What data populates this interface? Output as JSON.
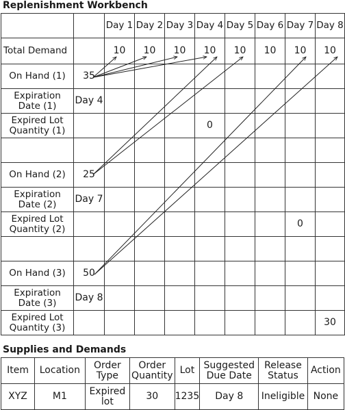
{
  "workbench": {
    "title": "Replenishment Workbench",
    "days": [
      "Day 1",
      "Day 2",
      "Day 3",
      "Day 4",
      "Day 5",
      "Day 6",
      "Day 7",
      "Day 8"
    ],
    "rows": [
      {
        "label": "Total Demand",
        "col0": "",
        "days": [
          "10",
          "10",
          "10",
          "10",
          "10",
          "10",
          "10",
          "10"
        ]
      },
      {
        "label": "On Hand (1)",
        "col0": "35",
        "days": [
          "",
          "",
          "",
          "",
          "",
          "",
          "",
          ""
        ]
      },
      {
        "label": "Expiration Date (1)",
        "col0": "Day 4",
        "days": [
          "",
          "",
          "",
          "",
          "",
          "",
          "",
          ""
        ]
      },
      {
        "label": "Expired Lot Quantity (1)",
        "col0": "",
        "days": [
          "",
          "",
          "",
          "0",
          "",
          "",
          "",
          ""
        ]
      },
      {
        "label": "",
        "col0": "",
        "days": [
          "",
          "",
          "",
          "",
          "",
          "",
          "",
          ""
        ]
      },
      {
        "label": "On Hand (2)",
        "col0": "25",
        "days": [
          "",
          "",
          "",
          "",
          "",
          "",
          "",
          ""
        ]
      },
      {
        "label": "Expiration Date (2)",
        "col0": "Day 7",
        "days": [
          "",
          "",
          "",
          "",
          "",
          "",
          "",
          ""
        ]
      },
      {
        "label": "Expired Lot Quantity (2)",
        "col0": "",
        "days": [
          "",
          "",
          "",
          "",
          "",
          "",
          "0",
          ""
        ]
      },
      {
        "label": "",
        "col0": "",
        "days": [
          "",
          "",
          "",
          "",
          "",
          "",
          "",
          ""
        ]
      },
      {
        "label": "On Hand (3)",
        "col0": "50",
        "days": [
          "",
          "",
          "",
          "",
          "",
          "",
          "",
          ""
        ]
      },
      {
        "label": "Expiration Date (3)",
        "col0": "Day 8",
        "days": [
          "",
          "",
          "",
          "",
          "",
          "",
          "",
          ""
        ]
      },
      {
        "label": "Expired Lot Quantity (3)",
        "col0": "",
        "days": [
          "",
          "",
          "",
          "",
          "",
          "",
          "",
          "30"
        ]
      }
    ]
  },
  "supplies": {
    "title": "Supplies and Demands",
    "headers": [
      "Item",
      "Location",
      "Order Type",
      "Order Quantity",
      "Lot",
      "Suggested Due Date",
      "Release Status",
      "Action"
    ],
    "row": [
      "XYZ",
      "M1",
      "Expired lot",
      "30",
      "1235",
      "Day 8",
      "Ineligible",
      "None"
    ]
  }
}
